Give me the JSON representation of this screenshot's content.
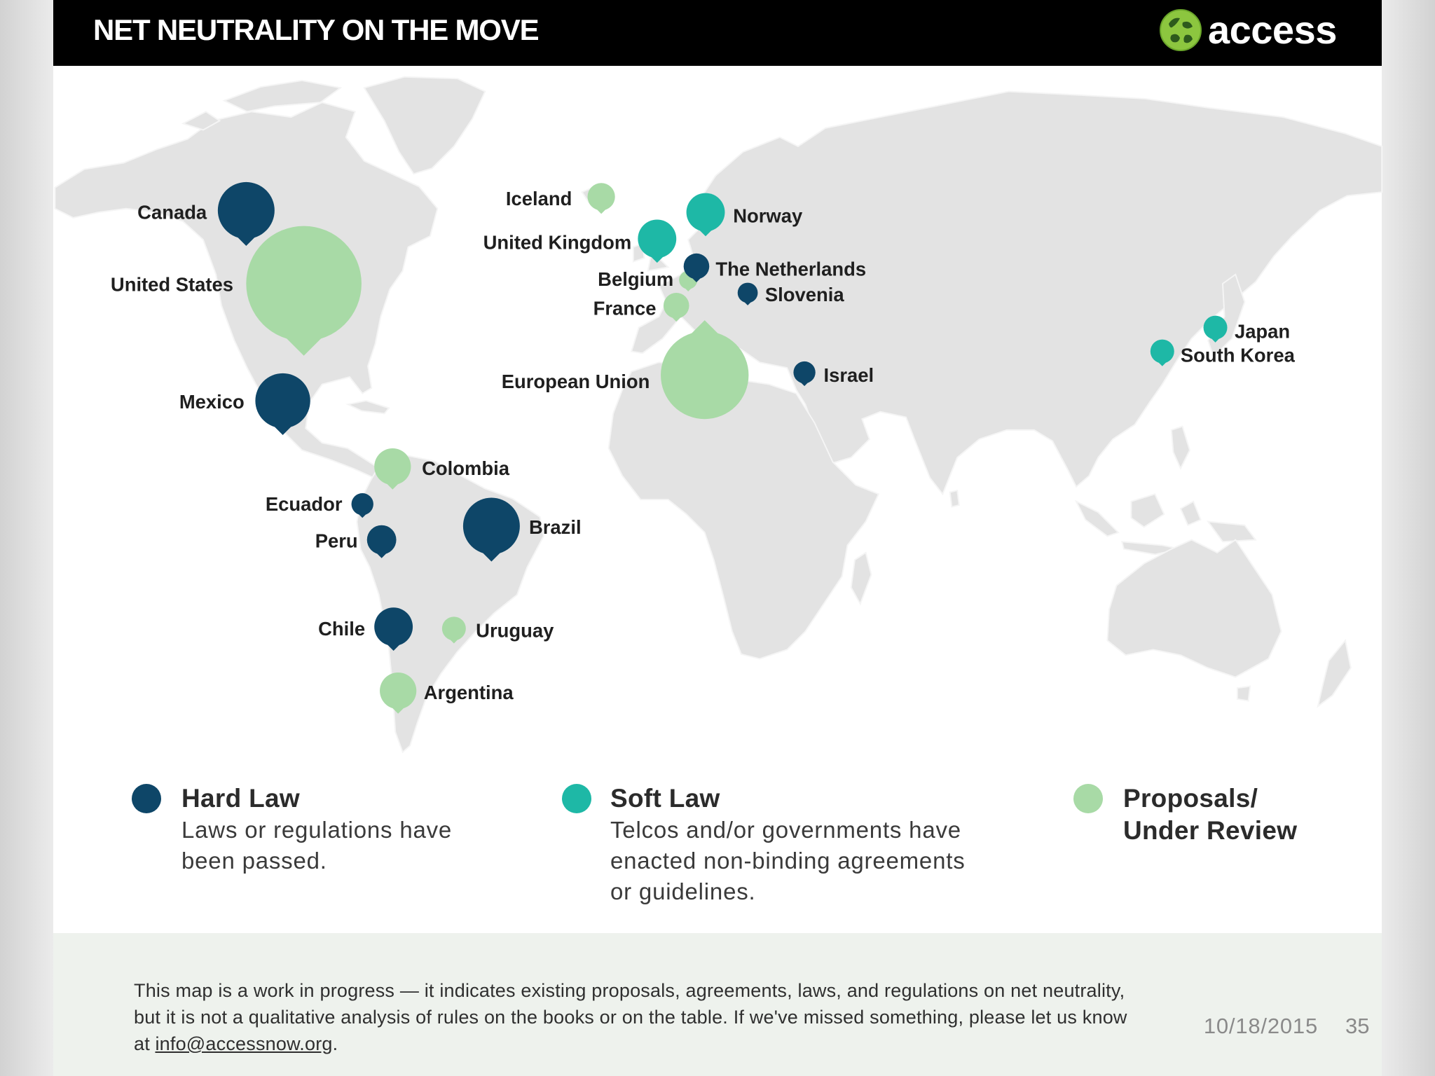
{
  "header": {
    "title": "NET NEUTRALITY ON THE MOVE",
    "logo_text": "access",
    "logo_icon": "access-globe-logo"
  },
  "colors": {
    "hard_law": "#0e4668",
    "soft_law": "#1eb8a6",
    "proposal": "#a8daa6"
  },
  "map": {
    "markers": [
      {
        "label": "Canada",
        "status": "hard_law"
      },
      {
        "label": "United States",
        "status": "proposal"
      },
      {
        "label": "Mexico",
        "status": "hard_law"
      },
      {
        "label": "Colombia",
        "status": "proposal"
      },
      {
        "label": "Ecuador",
        "status": "hard_law"
      },
      {
        "label": "Peru",
        "status": "hard_law"
      },
      {
        "label": "Brazil",
        "status": "hard_law"
      },
      {
        "label": "Chile",
        "status": "hard_law"
      },
      {
        "label": "Uruguay",
        "status": "proposal"
      },
      {
        "label": "Argentina",
        "status": "proposal"
      },
      {
        "label": "Iceland",
        "status": "proposal"
      },
      {
        "label": "United Kingdom",
        "status": "soft_law"
      },
      {
        "label": "Norway",
        "status": "soft_law"
      },
      {
        "label": "Belgium",
        "status": "proposal"
      },
      {
        "label": "The Netherlands",
        "status": "hard_law"
      },
      {
        "label": "France",
        "status": "proposal"
      },
      {
        "label": "Slovenia",
        "status": "hard_law"
      },
      {
        "label": "European Union",
        "status": "proposal"
      },
      {
        "label": "Israel",
        "status": "hard_law"
      },
      {
        "label": "Japan",
        "status": "soft_law"
      },
      {
        "label": "South Korea",
        "status": "soft_law"
      }
    ]
  },
  "legend": {
    "hard_law": {
      "title": "Hard Law",
      "description": [
        "Laws or regulations have",
        "been passed."
      ]
    },
    "soft_law": {
      "title": "Soft Law",
      "description": [
        "Telcos and/or governments have",
        "enacted non-binding agreements",
        "or guidelines."
      ]
    },
    "proposal": {
      "title": [
        "Proposals/",
        "Under Review"
      ]
    }
  },
  "footer_note": {
    "lines": [
      "This map is a work in progress — it indicates existing proposals, agreements, laws, and regulations on net neutrality,",
      "but it is not a qualitative analysis of rules on the books or on the table. If we've missed something, please let us know"
    ],
    "line3_prefix": "at",
    "email": "info@accessnow.org",
    "line3_suffix": "."
  },
  "slide": {
    "date": "10/18/2015",
    "page_number": "35"
  }
}
